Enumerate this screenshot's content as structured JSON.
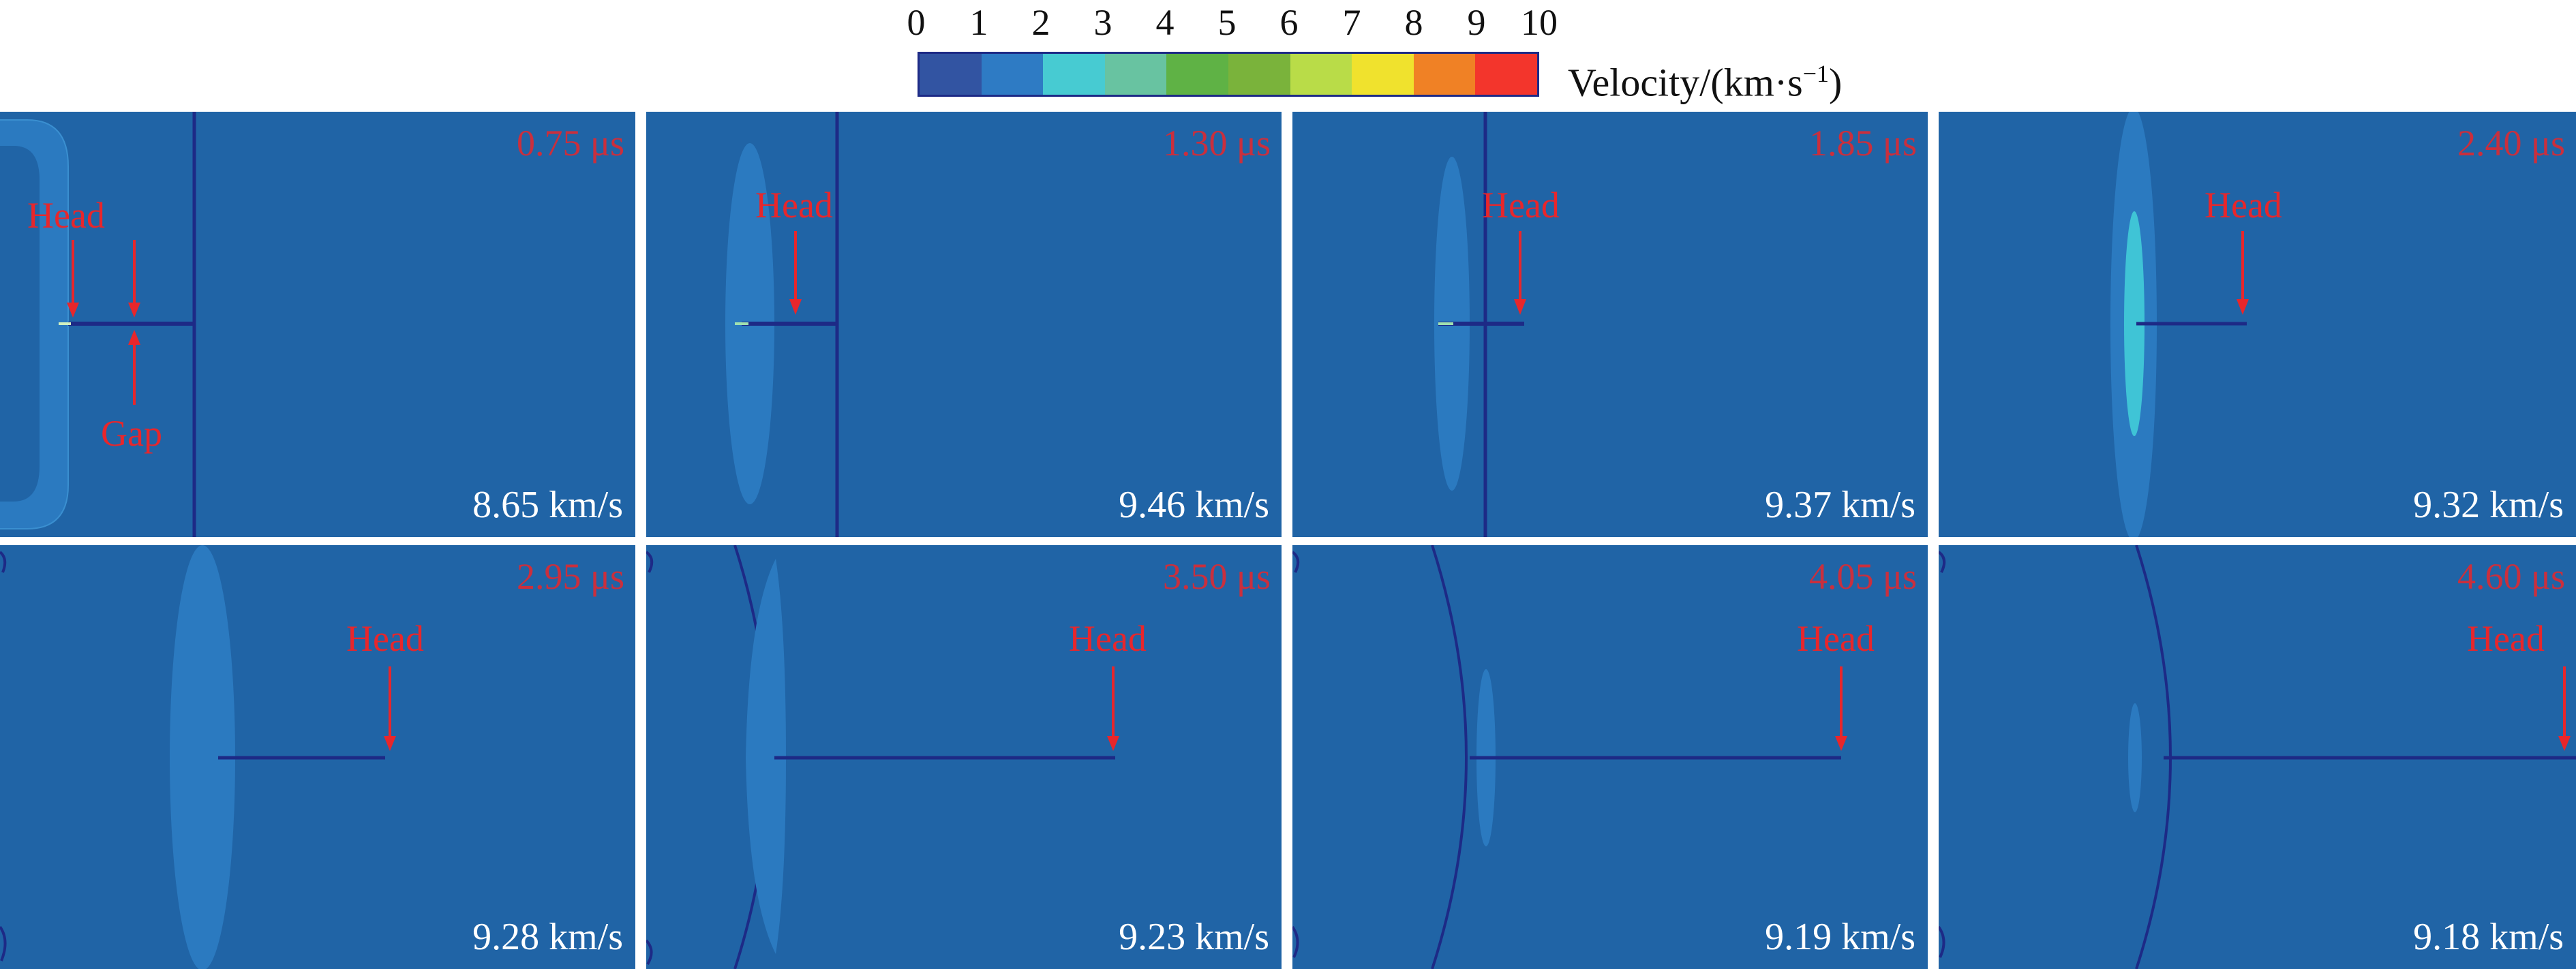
{
  "colorbar": {
    "ticks": [
      "0",
      "1",
      "2",
      "3",
      "4",
      "5",
      "6",
      "7",
      "8",
      "9",
      "10"
    ],
    "title_prefix": "Velocity/(km·s",
    "title_sup": "−1",
    "title_suffix": ")",
    "colors": [
      "#3254a2",
      "#2e7bc4",
      "#47cbd2",
      "#68c3a1",
      "#5fb245",
      "#7ab33b",
      "#b9dc48",
      "#f0e22d",
      "#f08125",
      "#f3352c"
    ]
  },
  "annotations": {
    "head": "Head",
    "gap": "Gap"
  },
  "panels": [
    {
      "time": "0.75 μs",
      "velocity": "8.65 km/s"
    },
    {
      "time": "1.30 μs",
      "velocity": "9.46 km/s"
    },
    {
      "time": "1.85 μs",
      "velocity": "9.37 km/s"
    },
    {
      "time": "2.40 μs",
      "velocity": "9.32 km/s"
    },
    {
      "time": "2.95 μs",
      "velocity": "9.28 km/s"
    },
    {
      "time": "3.50 μs",
      "velocity": "9.23 km/s"
    },
    {
      "time": "4.05 μs",
      "velocity": "9.19 km/s"
    },
    {
      "time": "4.60 μs",
      "velocity": "9.18 km/s"
    }
  ],
  "colors": {
    "field": "#2064a6",
    "region": "#2b7ac0",
    "highlight": "#3fc4d6",
    "front": "#1d2a86",
    "annotation": "#e8262b"
  }
}
